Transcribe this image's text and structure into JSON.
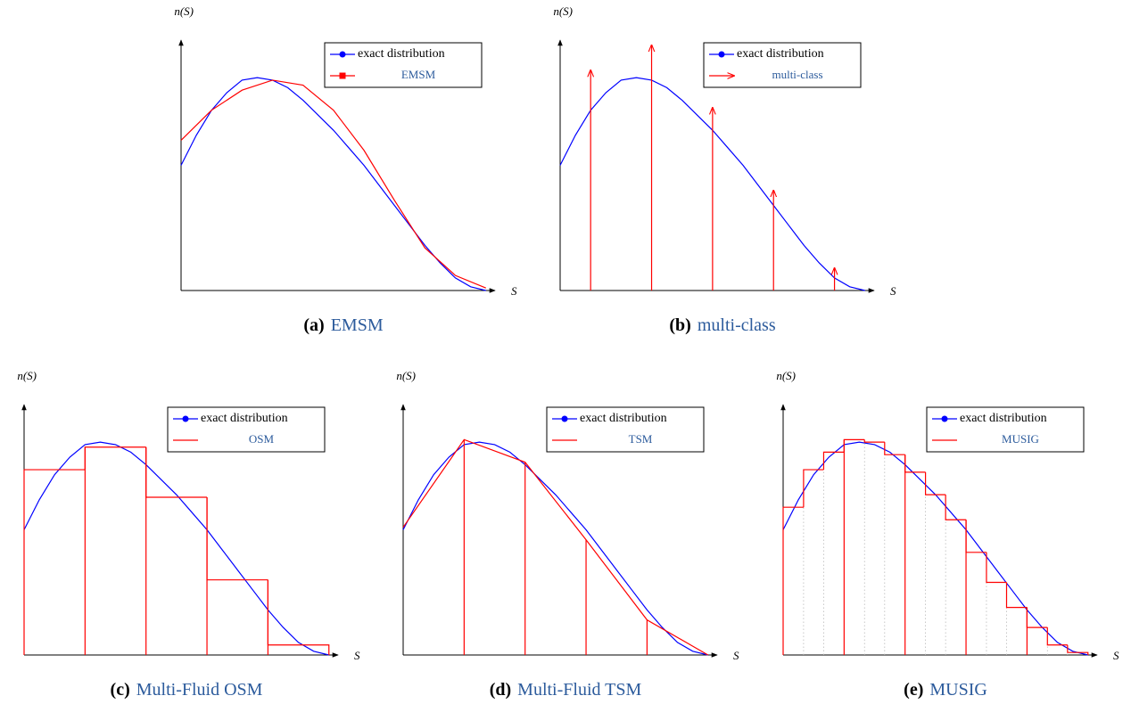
{
  "chart_data": [
    {
      "type": "line",
      "label": "(a)",
      "title": "EMSM",
      "xlabel": "S",
      "ylabel": "n(S)",
      "xlim": [
        0,
        1.03
      ],
      "ylim": [
        0,
        1
      ],
      "series": [
        {
          "name": "exact distribution",
          "color": "#0000ff",
          "marker": "circle",
          "x": [
            0,
            0.05,
            0.1,
            0.15,
            0.2,
            0.25,
            0.3,
            0.35,
            0.4,
            0.45,
            0.5,
            0.55,
            0.6,
            0.65,
            0.7,
            0.75,
            0.8,
            0.85,
            0.9,
            0.95,
            1.0
          ],
          "values": [
            0.5,
            0.62,
            0.72,
            0.79,
            0.84,
            0.85,
            0.84,
            0.81,
            0.76,
            0.7,
            0.64,
            0.57,
            0.5,
            0.42,
            0.34,
            0.26,
            0.18,
            0.11,
            0.05,
            0.015,
            0
          ]
        },
        {
          "name": "EMSM",
          "color": "#ff0000",
          "marker": "square",
          "x": [
            0,
            0.1,
            0.2,
            0.3,
            0.4,
            0.5,
            0.6,
            0.7,
            0.8,
            0.9,
            1.0
          ],
          "values": [
            0.6,
            0.72,
            0.8,
            0.84,
            0.82,
            0.72,
            0.56,
            0.36,
            0.17,
            0.06,
            0.01
          ]
        }
      ]
    },
    {
      "type": "stem",
      "label": "(b)",
      "title": "multi-class",
      "xlabel": "S",
      "ylabel": "n(S)",
      "xlim": [
        0,
        1.03
      ],
      "ylim": [
        0,
        1
      ],
      "series": [
        {
          "name": "exact distribution",
          "color": "#0000ff",
          "marker": "circle",
          "x": [
            0,
            0.05,
            0.1,
            0.15,
            0.2,
            0.25,
            0.3,
            0.35,
            0.4,
            0.45,
            0.5,
            0.55,
            0.6,
            0.65,
            0.7,
            0.75,
            0.8,
            0.85,
            0.9,
            0.95,
            1.0
          ],
          "values": [
            0.5,
            0.62,
            0.72,
            0.79,
            0.84,
            0.85,
            0.84,
            0.81,
            0.76,
            0.7,
            0.64,
            0.57,
            0.5,
            0.42,
            0.34,
            0.26,
            0.18,
            0.11,
            0.05,
            0.015,
            0
          ]
        },
        {
          "name": "multi-class",
          "color": "#ff0000",
          "x": [
            0.1,
            0.3,
            0.5,
            0.7,
            0.9
          ],
          "values": [
            0.88,
            0.98,
            0.73,
            0.4,
            0.09
          ]
        }
      ]
    },
    {
      "type": "histogram",
      "label": "(c)",
      "title": "Multi-Fluid OSM",
      "xlabel": "S",
      "ylabel": "n(S)",
      "xlim": [
        0,
        1.03
      ],
      "ylim": [
        0,
        1
      ],
      "series": [
        {
          "name": "exact distribution",
          "color": "#0000ff",
          "marker": "circle",
          "x": [
            0,
            0.05,
            0.1,
            0.15,
            0.2,
            0.25,
            0.3,
            0.35,
            0.4,
            0.45,
            0.5,
            0.55,
            0.6,
            0.65,
            0.7,
            0.75,
            0.8,
            0.85,
            0.9,
            0.95,
            1.0
          ],
          "values": [
            0.5,
            0.62,
            0.72,
            0.79,
            0.84,
            0.85,
            0.84,
            0.81,
            0.76,
            0.7,
            0.64,
            0.57,
            0.5,
            0.42,
            0.34,
            0.26,
            0.18,
            0.11,
            0.05,
            0.015,
            0
          ]
        },
        {
          "name": "OSM",
          "color": "#ff0000",
          "bins": [
            0,
            0.2,
            0.4,
            0.6,
            0.8,
            1.0
          ],
          "values": [
            0.74,
            0.83,
            0.63,
            0.3,
            0.04
          ]
        }
      ]
    },
    {
      "type": "nodal",
      "label": "(d)",
      "title": "Multi-Fluid TSM",
      "xlabel": "S",
      "ylabel": "n(S)",
      "xlim": [
        0,
        1.03
      ],
      "ylim": [
        0,
        1
      ],
      "series": [
        {
          "name": "exact distribution",
          "color": "#0000ff",
          "marker": "circle",
          "x": [
            0,
            0.05,
            0.1,
            0.15,
            0.2,
            0.25,
            0.3,
            0.35,
            0.4,
            0.45,
            0.5,
            0.55,
            0.6,
            0.65,
            0.7,
            0.75,
            0.8,
            0.85,
            0.9,
            0.95,
            1.0
          ],
          "values": [
            0.5,
            0.62,
            0.72,
            0.79,
            0.84,
            0.85,
            0.84,
            0.81,
            0.76,
            0.7,
            0.64,
            0.57,
            0.5,
            0.42,
            0.34,
            0.26,
            0.18,
            0.11,
            0.05,
            0.015,
            0
          ]
        },
        {
          "name": "TSM",
          "color": "#ff0000",
          "x": [
            0,
            0.2,
            0.4,
            0.6,
            0.8,
            1.0
          ],
          "values": [
            0.51,
            0.86,
            0.77,
            0.46,
            0.14,
            0
          ]
        }
      ]
    },
    {
      "type": "histogram",
      "label": "(e)",
      "title": "MUSIG",
      "xlabel": "S",
      "ylabel": "n(S)",
      "xlim": [
        0,
        1.03
      ],
      "ylim": [
        0,
        1
      ],
      "group_size": 3,
      "series": [
        {
          "name": "exact distribution",
          "color": "#0000ff",
          "marker": "circle",
          "x": [
            0,
            0.05,
            0.1,
            0.15,
            0.2,
            0.25,
            0.3,
            0.35,
            0.4,
            0.45,
            0.5,
            0.55,
            0.6,
            0.65,
            0.7,
            0.75,
            0.8,
            0.85,
            0.9,
            0.95,
            1.0
          ],
          "values": [
            0.5,
            0.62,
            0.72,
            0.79,
            0.84,
            0.85,
            0.84,
            0.81,
            0.76,
            0.7,
            0.64,
            0.57,
            0.5,
            0.42,
            0.34,
            0.26,
            0.18,
            0.11,
            0.05,
            0.015,
            0
          ]
        },
        {
          "name": "MUSIG",
          "color": "#ff0000",
          "bins": [
            0,
            0.067,
            0.133,
            0.2,
            0.267,
            0.333,
            0.4,
            0.467,
            0.533,
            0.6,
            0.667,
            0.733,
            0.8,
            0.867,
            0.933,
            1.0
          ],
          "values": [
            0.59,
            0.74,
            0.81,
            0.86,
            0.85,
            0.8,
            0.73,
            0.64,
            0.54,
            0.41,
            0.29,
            0.19,
            0.11,
            0.04,
            0.01
          ]
        }
      ]
    }
  ]
}
